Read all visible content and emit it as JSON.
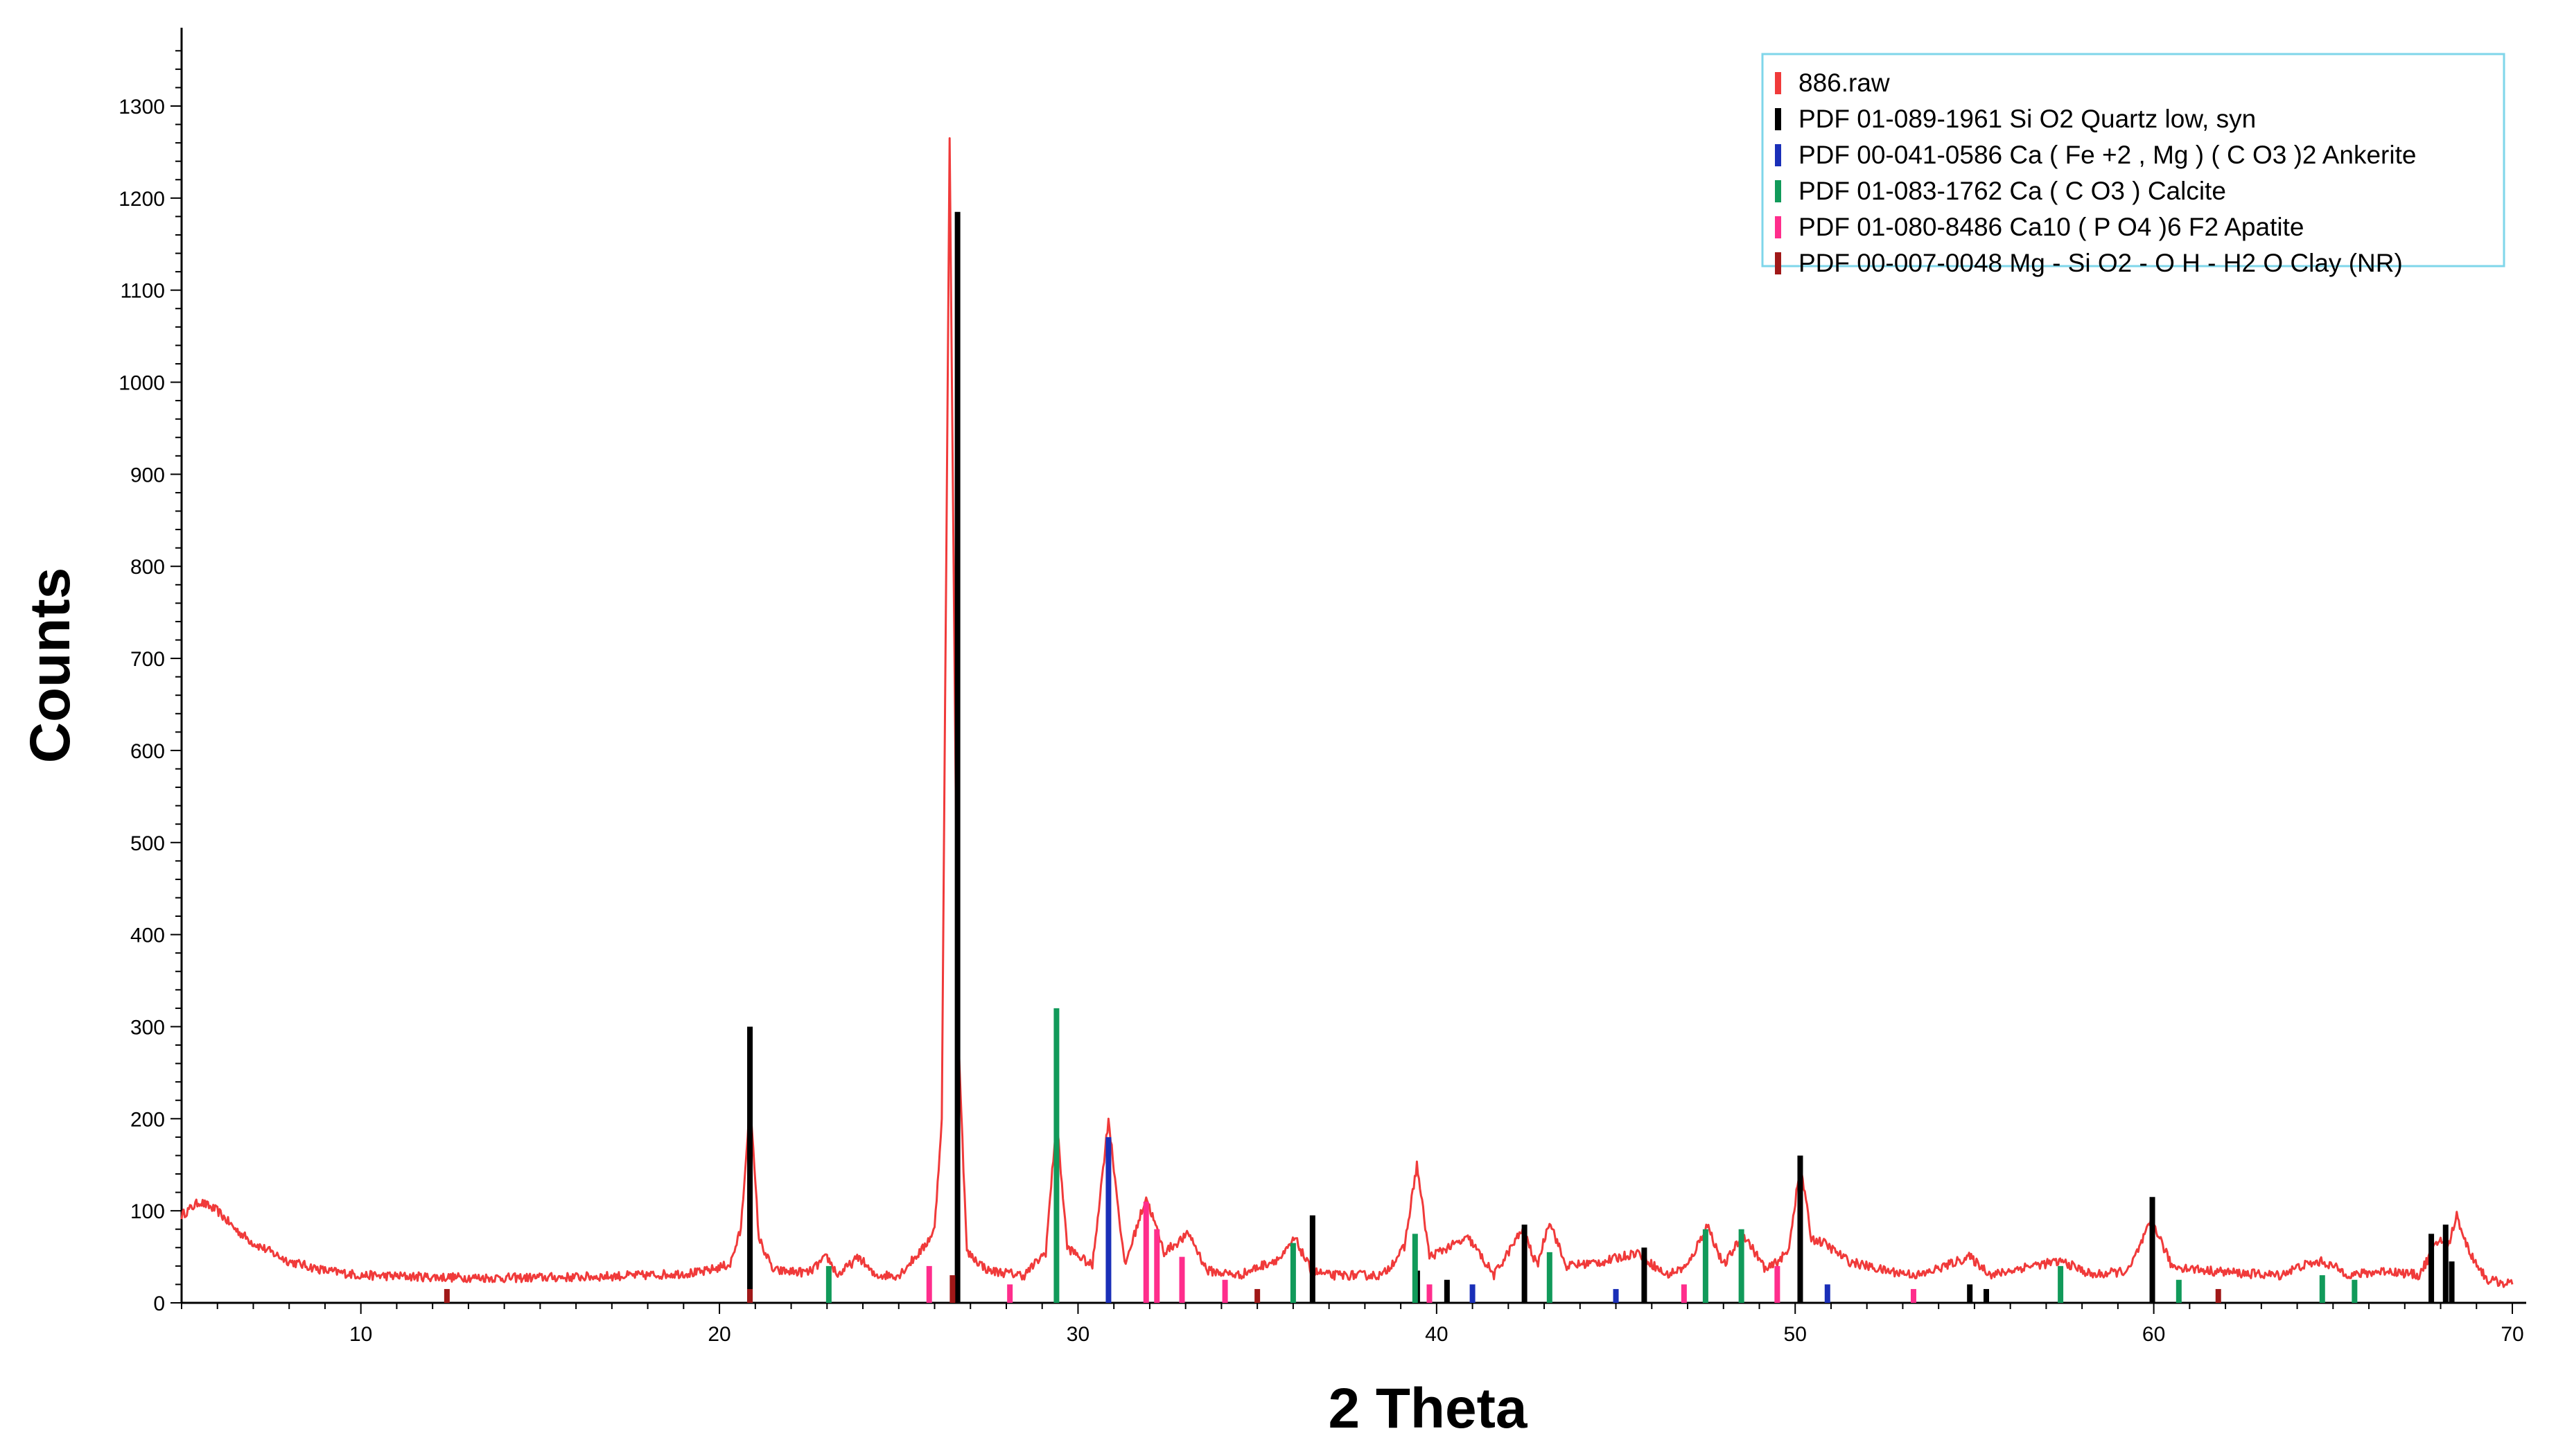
{
  "chart_data": {
    "type": "line",
    "title": "",
    "xlabel": "2 Theta",
    "ylabel": "Counts",
    "xlim": [
      5,
      70
    ],
    "ylim": [
      0,
      1370
    ],
    "x_ticks": [
      10,
      20,
      30,
      40,
      50,
      60,
      70
    ],
    "y_ticks": [
      0,
      100,
      200,
      300,
      400,
      500,
      600,
      700,
      800,
      900,
      1000,
      1100,
      1200,
      1300
    ],
    "grid": false,
    "legend_position": "top-right",
    "colors": {
      "886.raw": "#f03a3a",
      "quartz": "#000000",
      "ankerite": "#1a2fb8",
      "calcite": "#119a5a",
      "apatite": "#ff2d8c",
      "clay": "#a01818"
    },
    "legend": [
      {
        "key": "886.raw",
        "label": "886.raw"
      },
      {
        "key": "quartz",
        "label": "PDF 01-089-1961 Si O2 Quartz low, syn"
      },
      {
        "key": "ankerite",
        "label": "PDF 00-041-0586 Ca ( Fe +2 , Mg ) ( C O3 )2 Ankerite"
      },
      {
        "key": "calcite",
        "label": "PDF 01-083-1762 Ca ( C O3 ) Calcite"
      },
      {
        "key": "apatite",
        "label": "PDF 01-080-8486 Ca10 ( P O4 )6 F2 Apatite"
      },
      {
        "key": "clay",
        "label": "PDF 00-007-0048 Mg - Si O2 - O H - H2 O Clay (NR)"
      }
    ],
    "series": [
      {
        "name": "886.raw",
        "type": "line",
        "x": [
          5.0,
          5.5,
          6.0,
          6.5,
          7.0,
          8.0,
          9.0,
          10.0,
          12.0,
          14.0,
          16.0,
          18.0,
          19.5,
          20.3,
          20.6,
          20.85,
          21.1,
          21.5,
          22.5,
          23.0,
          23.3,
          23.9,
          24.3,
          25.0,
          25.7,
          26.0,
          26.2,
          26.42,
          26.65,
          26.9,
          27.5,
          28.5,
          29.1,
          29.4,
          29.7,
          30.4,
          30.85,
          31.3,
          31.9,
          32.4,
          33.1,
          33.6,
          34.5,
          35.7,
          36.05,
          36.5,
          37.0,
          38.5,
          39.1,
          39.45,
          39.8,
          40.3,
          40.9,
          41.6,
          42.4,
          42.8,
          43.15,
          43.6,
          44.7,
          45.6,
          46.4,
          47.0,
          47.55,
          48.0,
          48.55,
          49.2,
          49.8,
          50.15,
          50.45,
          50.8,
          51.5,
          52.5,
          53.5,
          54.85,
          55.5,
          56.5,
          57.45,
          58.3,
          59.3,
          59.95,
          60.5,
          61.5,
          62.5,
          63.5,
          64.1,
          64.7,
          65.5,
          66.5,
          67.4,
          67.75,
          68.0,
          68.2,
          68.45,
          68.8,
          69.3,
          70.0
        ],
        "y": [
          95,
          110,
          100,
          80,
          65,
          45,
          35,
          30,
          28,
          27,
          28,
          30,
          33,
          42,
          80,
          220,
          70,
          35,
          33,
          50,
          30,
          50,
          30,
          30,
          60,
          80,
          200,
          1265,
          300,
          55,
          35,
          30,
          55,
          200,
          60,
          40,
          200,
          40,
          115,
          55,
          75,
          35,
          30,
          50,
          70,
          35,
          30,
          30,
          60,
          150,
          50,
          60,
          70,
          30,
          80,
          40,
          90,
          40,
          45,
          55,
          30,
          40,
          85,
          40,
          75,
          35,
          55,
          150,
          70,
          65,
          45,
          35,
          30,
          50,
          30,
          40,
          45,
          30,
          35,
          90,
          40,
          35,
          32,
          30,
          40,
          45,
          30,
          35,
          30,
          55,
          70,
          60,
          95,
          55,
          25,
          20
        ]
      },
      {
        "name": "PDF 01-089-1961 Si O2 Quartz low, syn",
        "type": "stick",
        "x": [
          20.85,
          26.64,
          36.54,
          39.46,
          40.29,
          42.45,
          45.79,
          50.14,
          54.87,
          55.33,
          59.96,
          67.74,
          68.14,
          68.31
        ],
        "y": [
          300,
          1185,
          95,
          35,
          25,
          85,
          60,
          160,
          20,
          15,
          115,
          75,
          85,
          45
        ]
      },
      {
        "name": "PDF 00-041-0586 Ca ( Fe +2 , Mg ) ( C O3 )2 Ankerite",
        "type": "stick",
        "x": [
          30.85,
          41.0,
          45.0,
          50.9
        ],
        "y": [
          180,
          20,
          15,
          20
        ]
      },
      {
        "name": "PDF 01-083-1762 Ca ( C O3 ) Calcite",
        "type": "stick",
        "x": [
          23.05,
          29.4,
          36.0,
          39.4,
          43.15,
          47.5,
          48.5,
          57.4,
          60.7,
          64.7,
          65.6
        ],
        "y": [
          40,
          320,
          65,
          75,
          55,
          80,
          80,
          40,
          25,
          30,
          25
        ]
      },
      {
        "name": "PDF 01-080-8486 Ca10 ( P O4 )6 F2 Apatite",
        "type": "stick",
        "x": [
          25.85,
          28.1,
          31.9,
          32.2,
          32.9,
          34.1,
          39.8,
          46.9,
          49.5,
          53.3
        ],
        "y": [
          40,
          20,
          110,
          80,
          50,
          25,
          20,
          20,
          40,
          15
        ]
      },
      {
        "name": "PDF 00-007-0048 Mg - Si O2 - O H - H2 O Clay (NR)",
        "type": "stick",
        "x": [
          12.4,
          20.85,
          26.5,
          35.0,
          61.8
        ],
        "y": [
          15,
          15,
          30,
          15,
          15
        ]
      }
    ]
  }
}
